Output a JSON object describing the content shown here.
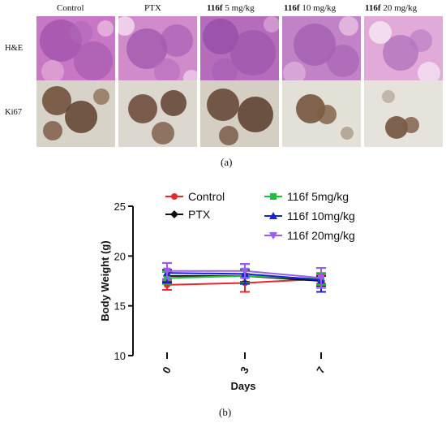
{
  "figure": {
    "columns": [
      {
        "bold": "",
        "text": "Control"
      },
      {
        "bold": "",
        "text": "PTX"
      },
      {
        "bold": "116f",
        "text": " 5 mg/kg"
      },
      {
        "bold": "116f",
        "text": " 10 mg/kg"
      },
      {
        "bold": "116f",
        "text": " 20 mg/kg"
      }
    ],
    "rows": [
      "H&E",
      "Ki67"
    ],
    "panel_a": "(a)",
    "panel_b": "(b)"
  },
  "chart_data": {
    "type": "line",
    "x": [
      "0",
      "3",
      "7"
    ],
    "xlabel": "Days",
    "ylabel": "Body Weight (g)",
    "ylim": [
      10,
      25
    ],
    "yticks": [
      10,
      15,
      20,
      25
    ],
    "legend_placement": "top",
    "series": [
      {
        "name": "Control",
        "color": "#e8282a",
        "marker": "circle",
        "values": [
          17.1,
          17.3,
          17.7
        ],
        "err": [
          0.5,
          0.9,
          0.5
        ]
      },
      {
        "name": "PTX",
        "color": "#111111",
        "marker": "diamond",
        "values": [
          18.0,
          18.0,
          17.5
        ],
        "err": [
          0.6,
          0.6,
          0.5
        ]
      },
      {
        "name": "116f 5mg/kg",
        "color": "#22c03a",
        "marker": "square",
        "values": [
          17.8,
          18.0,
          17.7
        ],
        "err": [
          0.6,
          0.7,
          0.6
        ]
      },
      {
        "name": "116f 10mg/kg",
        "color": "#1a22d8",
        "marker": "triangle-up",
        "values": [
          18.3,
          18.2,
          17.6
        ],
        "err": [
          1.0,
          1.0,
          1.2
        ]
      },
      {
        "name": "116f 20mg/kg",
        "color": "#9b5cf0",
        "marker": "triangle-down",
        "values": [
          18.5,
          18.5,
          17.8
        ],
        "err": [
          0.8,
          0.7,
          1.0
        ]
      }
    ]
  }
}
